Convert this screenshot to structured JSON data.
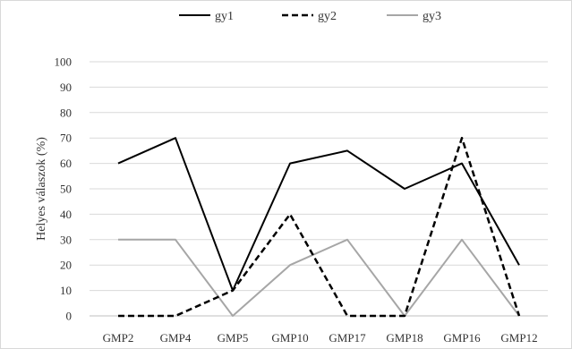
{
  "chart_data": {
    "type": "line",
    "title": "",
    "xlabel": "",
    "ylabel": "Helyes válaszok (%)",
    "ylim": [
      0,
      100
    ],
    "yticks": [
      0,
      10,
      20,
      30,
      40,
      50,
      60,
      70,
      80,
      90,
      100
    ],
    "grid": true,
    "legend_position": "top-center",
    "categories": [
      "GMP2",
      "GMP4",
      "GMP5",
      "GMP10",
      "GMP17",
      "GMP18",
      "GMP16",
      "GMP12"
    ],
    "series": [
      {
        "name": "gy1",
        "values": [
          60,
          70,
          10,
          60,
          65,
          50,
          60,
          20
        ],
        "color": "#000000",
        "line_style": "solid"
      },
      {
        "name": "gy2",
        "values": [
          0,
          0,
          10,
          40,
          0,
          0,
          70,
          0
        ],
        "color": "#000000",
        "line_style": "dashed"
      },
      {
        "name": "gy3",
        "values": [
          30,
          30,
          0,
          20,
          30,
          0,
          30,
          0
        ],
        "color": "#a6a6a6",
        "line_style": "solid"
      }
    ]
  }
}
